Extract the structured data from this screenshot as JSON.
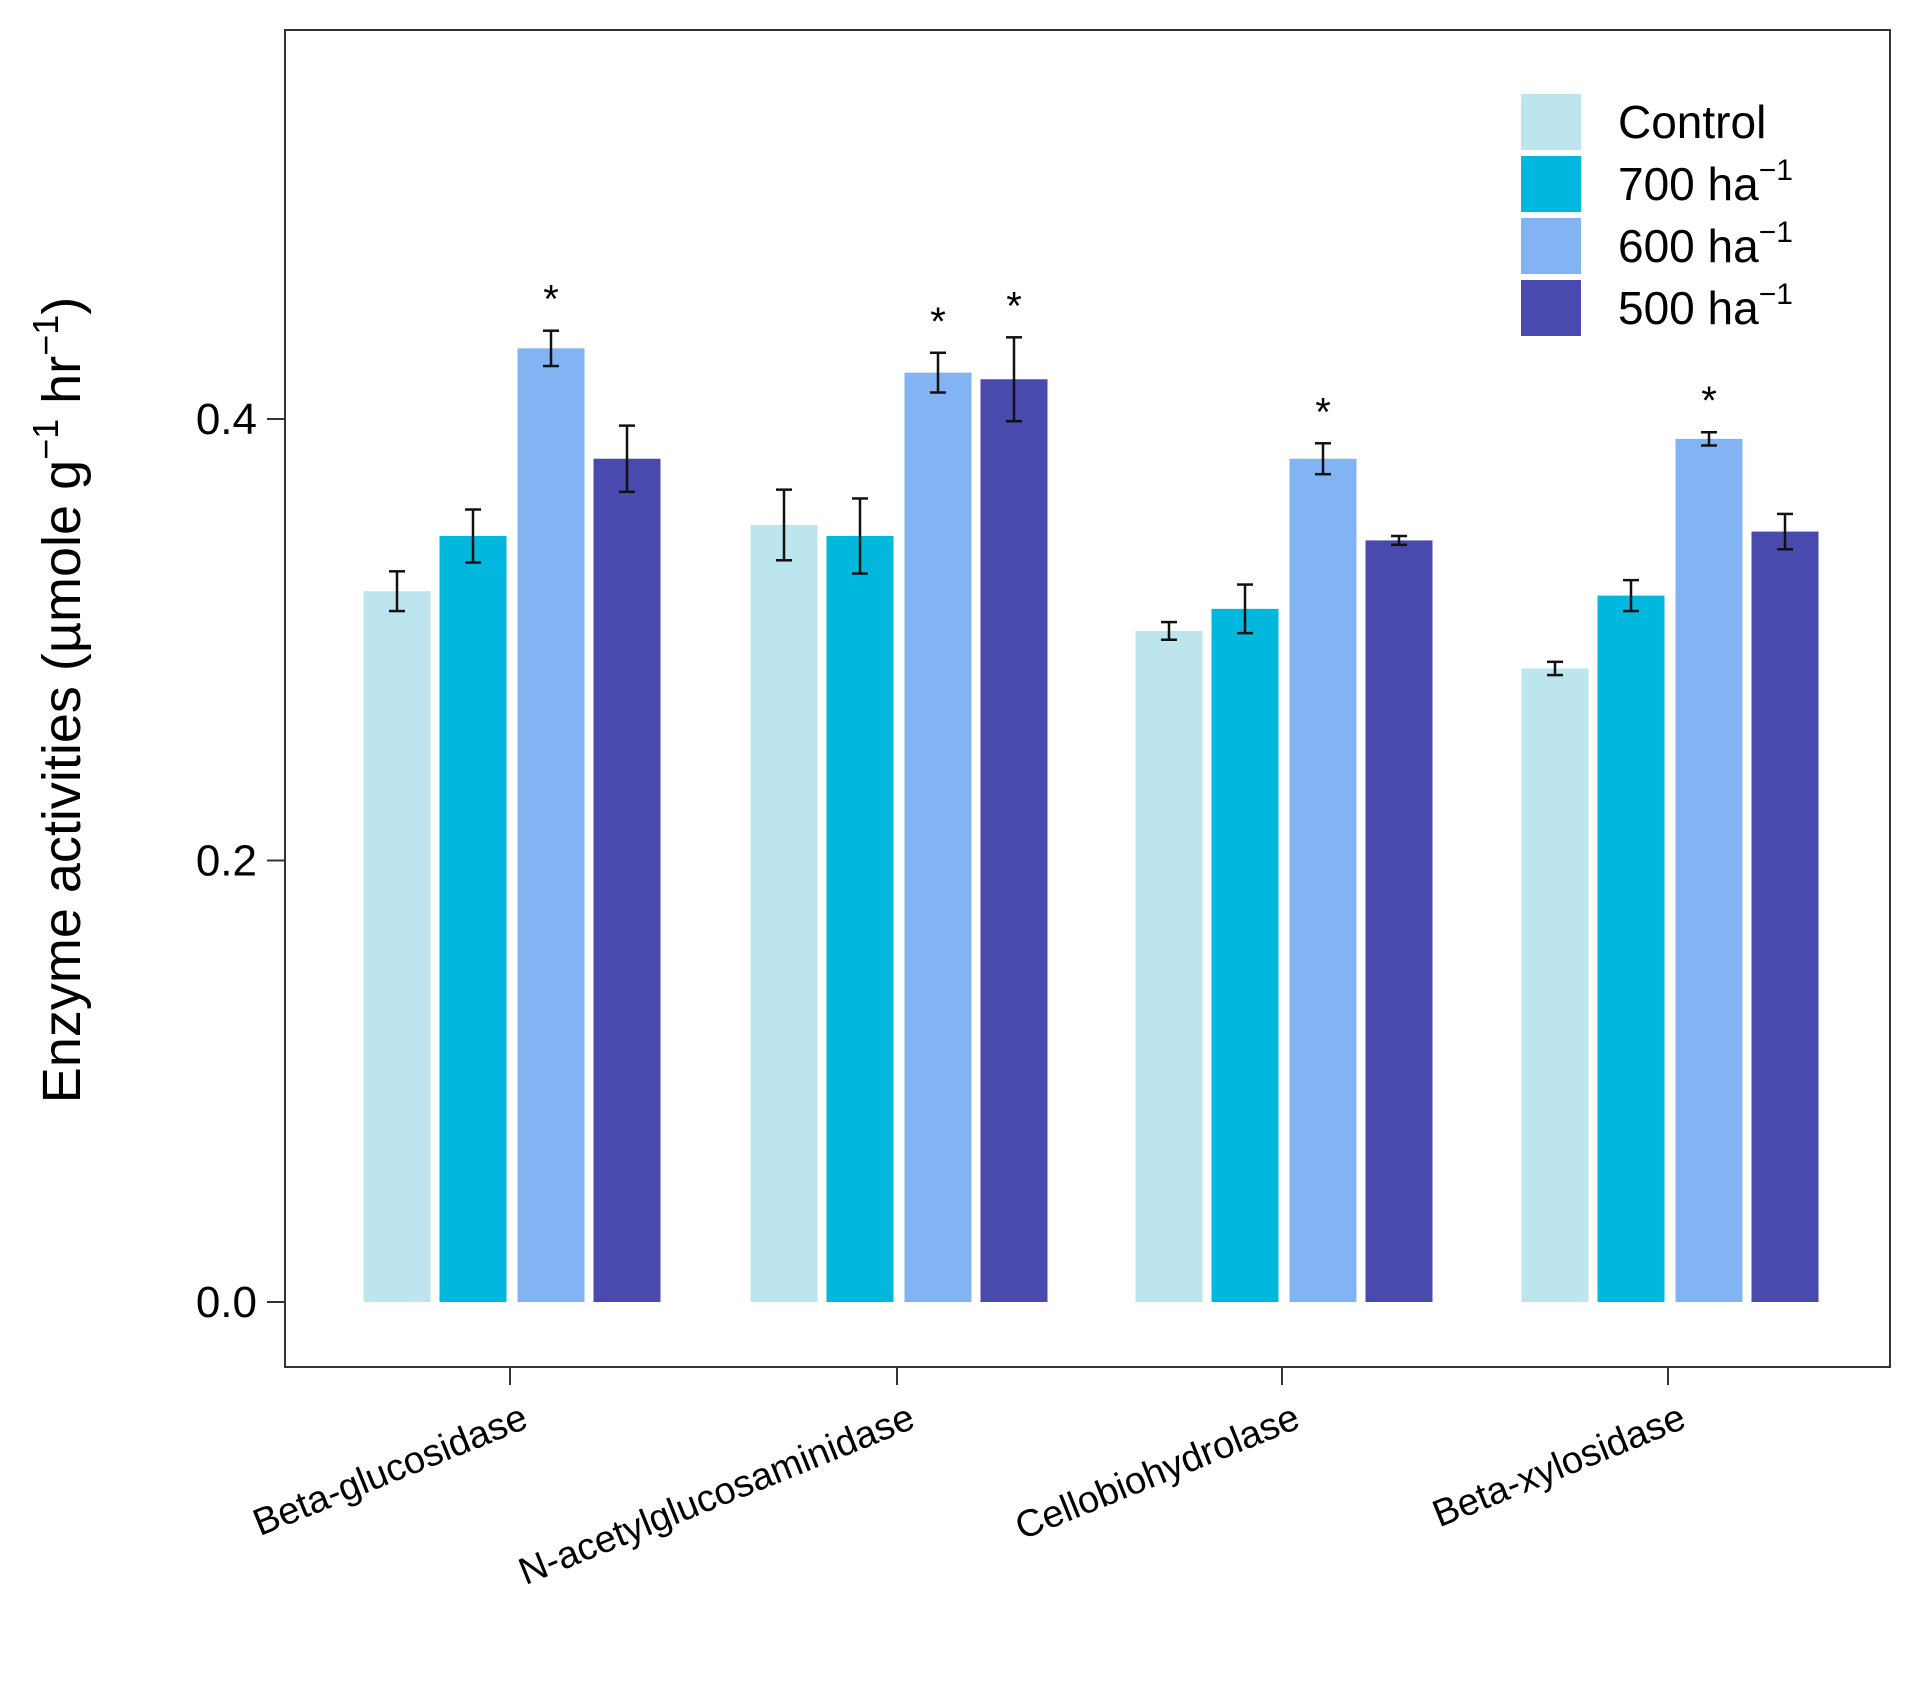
{
  "chart_data": {
    "type": "bar",
    "title": "",
    "xlabel": "",
    "ylabel": {
      "main": "Enzyme activities (µmole g",
      "sup1": "−1",
      "mid": " hr",
      "sup2": "−1",
      "end": ")"
    },
    "ylim": [
      -0.03,
      0.58
    ],
    "yticks": [
      {
        "value": 0.0,
        "label": "0.0"
      },
      {
        "value": 0.2,
        "label": "0.2"
      },
      {
        "value": 0.4,
        "label": "0.4"
      }
    ],
    "categories": [
      "Beta-glucosidase",
      "N-acetylglucosaminidase",
      "Cellobiohydrolase",
      "Beta-xylosidase"
    ],
    "series": [
      {
        "name": "Control",
        "unit": " ha",
        "sup": "",
        "color": "#bce5ee",
        "values": [
          0.322,
          0.352,
          0.304,
          0.287
        ],
        "errors": [
          0.009,
          0.016,
          0.004,
          0.003
        ],
        "significant": [
          false,
          false,
          false,
          false
        ]
      },
      {
        "name": "700",
        "unit": " ha",
        "sup": "−1",
        "color": "#00b8de",
        "values": [
          0.347,
          0.347,
          0.314,
          0.32
        ],
        "errors": [
          0.012,
          0.017,
          0.011,
          0.007
        ],
        "significant": [
          false,
          false,
          false,
          false
        ]
      },
      {
        "name": "600",
        "unit": " ha",
        "sup": "−1",
        "color": "#82b4f4",
        "values": [
          0.432,
          0.421,
          0.382,
          0.391
        ],
        "errors": [
          0.008,
          0.009,
          0.007,
          0.003
        ],
        "significant": [
          true,
          true,
          true,
          true
        ]
      },
      {
        "name": "500",
        "unit": " ha",
        "sup": "−1",
        "color": "#4a4aae",
        "values": [
          0.382,
          0.418,
          0.345,
          0.349
        ],
        "errors": [
          0.015,
          0.019,
          0.002,
          0.008
        ],
        "significant": [
          false,
          true,
          false,
          false
        ]
      }
    ],
    "significance_marker": "*",
    "legend_position": "top-right",
    "grid": false
  }
}
